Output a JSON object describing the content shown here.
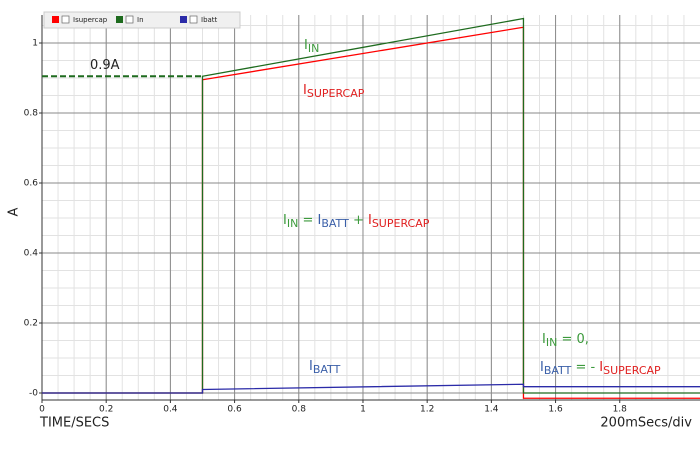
{
  "chart_data": {
    "type": "line",
    "x_label": "TIME/SECS",
    "y_label": "A",
    "scale_label": "200mSecs/div",
    "x": [
      0,
      0.5,
      0.5,
      1.5,
      1.5,
      2.05
    ],
    "series": [
      {
        "name": "Isupercap",
        "color": "#ff0000",
        "values": [
          0,
          0,
          0.895,
          1.045,
          -0.015,
          -0.015
        ]
      },
      {
        "name": "In",
        "color": "#1e6b1e",
        "values": [
          0,
          0,
          0.905,
          1.07,
          0,
          0
        ]
      },
      {
        "name": "Ibatt",
        "color": "#2b2ba8",
        "values": [
          0,
          0,
          0.01,
          0.025,
          0.018,
          0.018
        ]
      }
    ],
    "xlim": [
      0,
      2.05
    ],
    "ylim": [
      -0.02,
      1.08
    ],
    "xticks": [
      0,
      0.2,
      0.4,
      0.6,
      0.8,
      1,
      1.2,
      1.4,
      1.6,
      1.8
    ],
    "yticks": [
      {
        "value": 0,
        "label": "-0"
      },
      0.2,
      0.4,
      0.6,
      0.8,
      1
    ],
    "grid": true,
    "reference_line": {
      "value": 0.905,
      "label": "0.9A",
      "x": [
        0,
        0.5
      ],
      "color": "#1e6b1e"
    },
    "annotations": [
      [
        {
          "text": "I",
          "sub": "IN",
          "color": "#3c9a3c"
        }
      ],
      [
        {
          "text": "I",
          "sub": "SUPERCAP",
          "color": "#e02020"
        }
      ],
      [
        {
          "text": "I",
          "sub": "IN",
          "color": "#3c9a3c"
        },
        {
          "text": " = ",
          "color": "#3c9a3c"
        },
        {
          "text": "I",
          "sub": "BATT",
          "color": "#3a5fa8"
        },
        {
          "text": " + ",
          "color": "#3c9a3c"
        },
        {
          "text": "I",
          "sub": "SUPERCAP",
          "color": "#e02020"
        }
      ],
      [
        {
          "text": "I",
          "sub": "BATT",
          "color": "#3a5fa8"
        }
      ],
      [
        {
          "text": "I",
          "sub": "IN",
          "color": "#3c9a3c"
        },
        {
          "text": " = 0,",
          "color": "#3c9a3c"
        }
      ],
      [
        {
          "text": "I",
          "sub": "BATT",
          "color": "#3a5fa8"
        },
        {
          "text": " = - ",
          "color": "#3c9a3c"
        },
        {
          "text": "I",
          "sub": "SUPERCAP",
          "color": "#e02020"
        }
      ]
    ]
  }
}
